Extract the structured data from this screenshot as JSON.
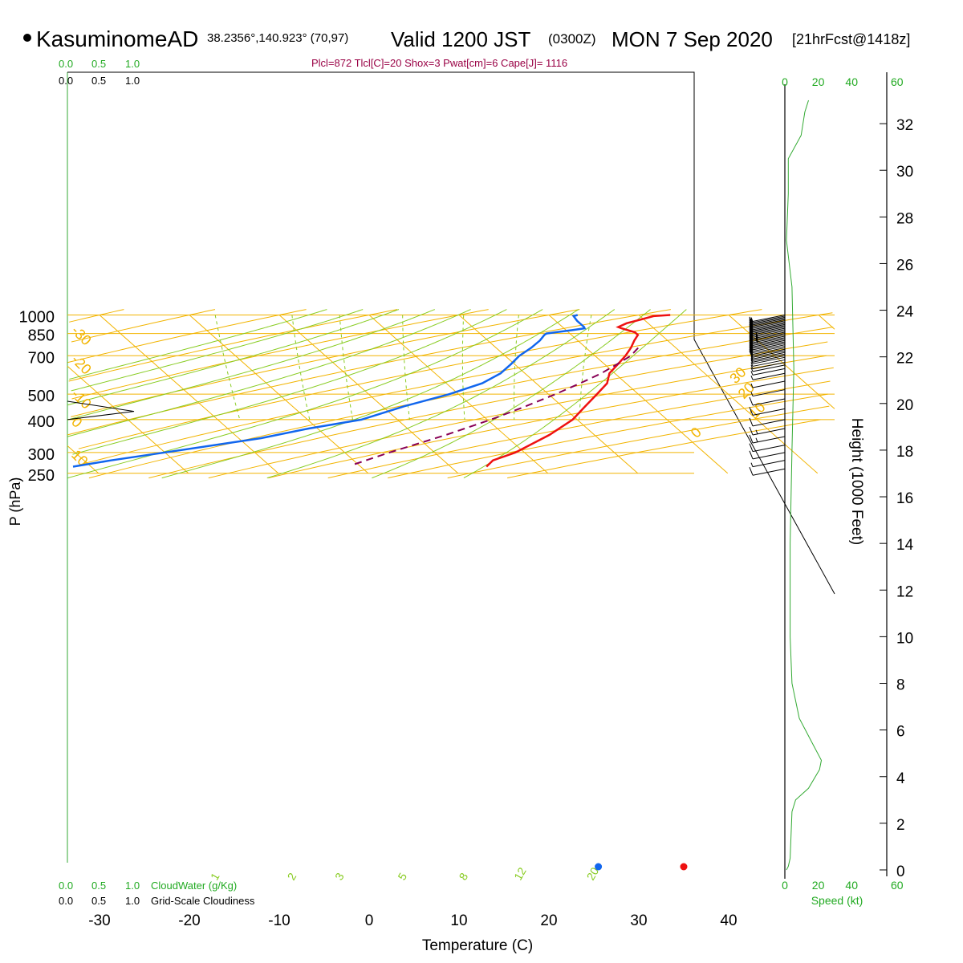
{
  "header": {
    "station": "KasuminomeAD",
    "coords": "38.2356°,140.923° (70,97)",
    "valid": "Valid 1200 JST",
    "utc": "(0300Z)",
    "date": "MON 7 Sep 2020",
    "forecast": "[21hrFcst@1418z]"
  },
  "indices_text": "Plcl=872 Tlcl[C]=20 Shox=3 Pwat[cm]=6 Cape[J]= 1116",
  "colors": {
    "grid": "#f2b400",
    "dry_adiabat": "#f2b400",
    "moist_adiabat": "#88cc22",
    "mixing_ratio": "#88cc22",
    "temperature": "#ee1111",
    "dewpoint": "#1166ee",
    "parcel": "#880055",
    "green_text": "#22aa22",
    "indices": "#990044",
    "wind_speed": "#33aa33"
  },
  "cloud_scale": {
    "top_green": [
      "0.0",
      "0.5",
      "1.0"
    ],
    "top_black": [
      "0.0",
      "0.5",
      "1.0"
    ],
    "bottom_green": [
      "0.0",
      "0.5",
      "1.0"
    ],
    "bottom_black": [
      "0.0",
      "0.5",
      "1.0"
    ],
    "cloudwater_label": "CloudWater (g/Kg)",
    "cloudiness_label": "Grid-Scale Cloudiness"
  },
  "speed_scale": {
    "ticks": [
      "0",
      "20",
      "40",
      "60"
    ],
    "label": "Speed (kt)"
  },
  "chart_data": {
    "type": "line",
    "diagram": "skew-T log-P",
    "xlabel": "Temperature (C)",
    "ylabel": "P (hPa)",
    "y2label": "Height (1000 Feet)",
    "x_ticks": [
      -30,
      -20,
      -10,
      0,
      10,
      20,
      30,
      40
    ],
    "pressure_labels": [
      250,
      300,
      400,
      500,
      700,
      850,
      1000
    ],
    "height_ticks_kft": [
      0,
      2,
      4,
      6,
      8,
      10,
      12,
      14,
      16,
      18,
      20,
      22,
      24,
      26,
      28,
      30,
      32
    ],
    "dry_adiabat_labels": [
      {
        "text": "10",
        "side": "left",
        "p": 300
      },
      {
        "text": "0",
        "side": "left",
        "p": 400
      },
      {
        "text": "-10",
        "side": "left",
        "p": 510
      },
      {
        "text": "-20",
        "side": "left",
        "p": 690
      },
      {
        "text": "-30",
        "side": "left",
        "p": 890
      },
      {
        "text": "0",
        "side": "right",
        "p": 348
      },
      {
        "text": "10",
        "side": "right",
        "p": 412
      },
      {
        "text": "20",
        "side": "right",
        "p": 490
      },
      {
        "text": "30",
        "side": "right",
        "p": 560
      }
    ],
    "mixing_ratio_labels": [
      "1",
      "2",
      "3",
      "5",
      "8",
      "12",
      "20"
    ],
    "temperature": [
      {
        "p": 1000,
        "t": 33.5
      },
      {
        "p": 990,
        "t": 31.5
      },
      {
        "p": 960,
        "t": 29.6
      },
      {
        "p": 930,
        "t": 27.6
      },
      {
        "p": 900,
        "t": 26.2
      },
      {
        "p": 890,
        "t": 26.4
      },
      {
        "p": 860,
        "t": 27.4
      },
      {
        "p": 840,
        "t": 27.4
      },
      {
        "p": 800,
        "t": 26.3
      },
      {
        "p": 750,
        "t": 25.0
      },
      {
        "p": 700,
        "t": 23.4
      },
      {
        "p": 650,
        "t": 21.5
      },
      {
        "p": 600,
        "t": 19.4
      },
      {
        "p": 550,
        "t": 17.9
      },
      {
        "p": 500,
        "t": 15.4
      },
      {
        "p": 450,
        "t": 12.6
      },
      {
        "p": 400,
        "t": 9.5
      },
      {
        "p": 350,
        "t": 5.0
      },
      {
        "p": 300,
        "t": -1.0
      },
      {
        "p": 280,
        "t": -4.5
      },
      {
        "p": 265,
        "t": -6.0
      }
    ],
    "dewpoint": [
      {
        "p": 1000,
        "t": 23.2
      },
      {
        "p": 990,
        "t": 22.6
      },
      {
        "p": 950,
        "t": 22.4
      },
      {
        "p": 900,
        "t": 22.4
      },
      {
        "p": 890,
        "t": 22.3
      },
      {
        "p": 875,
        "t": 20.6
      },
      {
        "p": 860,
        "t": 18.6
      },
      {
        "p": 850,
        "t": 17.4
      },
      {
        "p": 840,
        "t": 17.0
      },
      {
        "p": 800,
        "t": 15.8
      },
      {
        "p": 750,
        "t": 13.9
      },
      {
        "p": 700,
        "t": 11.6
      },
      {
        "p": 650,
        "t": 9.6
      },
      {
        "p": 600,
        "t": 7.3
      },
      {
        "p": 550,
        "t": 4.0
      },
      {
        "p": 500,
        "t": -1.0
      },
      {
        "p": 450,
        "t": -7.5
      },
      {
        "p": 400,
        "t": -14.0
      },
      {
        "p": 370,
        "t": -21.0
      },
      {
        "p": 340,
        "t": -27.5
      },
      {
        "p": 300,
        "t": -40.0
      },
      {
        "p": 280,
        "t": -47.0
      },
      {
        "p": 265,
        "t": -52.0
      }
    ],
    "parcel": [
      {
        "p": 750,
        "t": 25.8
      },
      {
        "p": 700,
        "t": 24.0
      },
      {
        "p": 650,
        "t": 21.4
      },
      {
        "p": 600,
        "t": 18.5
      },
      {
        "p": 550,
        "t": 14.9
      },
      {
        "p": 500,
        "t": 10.8
      },
      {
        "p": 450,
        "t": 6.0
      },
      {
        "p": 400,
        "t": 0.4
      },
      {
        "p": 350,
        "t": -6.5
      },
      {
        "p": 300,
        "t": -15.0
      },
      {
        "p": 270,
        "t": -20.5
      }
    ],
    "surface_temperature": 35.0,
    "surface_dewpoint": 25.5,
    "cloud_water_profile": [
      {
        "p": 400,
        "value": 0.0
      },
      {
        "p": 430,
        "value": 1.0
      },
      {
        "p": 470,
        "value": 0.0
      }
    ],
    "wind_speed_axis": [
      0,
      60
    ],
    "wind_speed_profile": [
      {
        "h": 0.0,
        "s": 0
      },
      {
        "h": 0.15,
        "s": 1
      },
      {
        "h": 0.5,
        "s": 2
      },
      {
        "h": 2.5,
        "s": 3
      },
      {
        "h": 3.0,
        "s": 5
      },
      {
        "h": 3.5,
        "s": 12
      },
      {
        "h": 4.3,
        "s": 18
      },
      {
        "h": 4.7,
        "s": 19
      },
      {
        "h": 5.3,
        "s": 15
      },
      {
        "h": 6.5,
        "s": 7
      },
      {
        "h": 8.0,
        "s": 3
      },
      {
        "h": 10.0,
        "s": 2
      },
      {
        "h": 14.0,
        "s": 2
      },
      {
        "h": 18.0,
        "s": 3
      },
      {
        "h": 21.5,
        "s": 4
      },
      {
        "h": 25.0,
        "s": 3
      },
      {
        "h": 27.0,
        "s": 0
      },
      {
        "h": 29.0,
        "s": 1
      },
      {
        "h": 30.5,
        "s": 1
      },
      {
        "h": 31.5,
        "s": 8
      },
      {
        "h": 32.5,
        "s": 10
      },
      {
        "h": 33.0,
        "s": 12
      }
    ],
    "wind_barbs": [
      {
        "p": 1000,
        "spd": 8
      },
      {
        "p": 990,
        "spd": 8
      },
      {
        "p": 980,
        "spd": 9
      },
      {
        "p": 970,
        "spd": 10
      },
      {
        "p": 960,
        "spd": 10
      },
      {
        "p": 950,
        "spd": 11
      },
      {
        "p": 940,
        "spd": 11
      },
      {
        "p": 930,
        "spd": 12
      },
      {
        "p": 920,
        "spd": 12
      },
      {
        "p": 910,
        "spd": 13
      },
      {
        "p": 900,
        "spd": 13
      },
      {
        "p": 890,
        "spd": 14
      },
      {
        "p": 880,
        "spd": 14
      },
      {
        "p": 870,
        "spd": 15
      },
      {
        "p": 860,
        "spd": 15
      },
      {
        "p": 850,
        "spd": 16
      },
      {
        "p": 840,
        "spd": 16
      },
      {
        "p": 830,
        "spd": 15
      },
      {
        "p": 820,
        "spd": 15
      },
      {
        "p": 810,
        "spd": 14
      },
      {
        "p": 800,
        "spd": 14
      },
      {
        "p": 790,
        "spd": 13
      },
      {
        "p": 780,
        "spd": 13
      },
      {
        "p": 770,
        "spd": 12
      },
      {
        "p": 760,
        "spd": 12
      },
      {
        "p": 750,
        "spd": 11
      },
      {
        "p": 740,
        "spd": 11
      },
      {
        "p": 730,
        "spd": 10
      },
      {
        "p": 720,
        "spd": 10
      },
      {
        "p": 710,
        "spd": 9
      },
      {
        "p": 700,
        "spd": 9
      },
      {
        "p": 690,
        "spd": 8
      },
      {
        "p": 675,
        "spd": 8
      },
      {
        "p": 660,
        "spd": 7
      },
      {
        "p": 645,
        "spd": 7
      },
      {
        "p": 625,
        "spd": 6
      },
      {
        "p": 600,
        "spd": 6
      },
      {
        "p": 560,
        "spd": 5
      },
      {
        "p": 520,
        "spd": 5
      },
      {
        "p": 480,
        "spd": 10
      },
      {
        "p": 440,
        "spd": 10
      },
      {
        "p": 400,
        "spd": 10
      },
      {
        "p": 370,
        "spd": 15
      },
      {
        "p": 345,
        "spd": 15
      },
      {
        "p": 320,
        "spd": 10
      },
      {
        "p": 300,
        "spd": 10
      },
      {
        "p": 280,
        "spd": 5
      },
      {
        "p": 260,
        "spd": 10
      }
    ]
  }
}
